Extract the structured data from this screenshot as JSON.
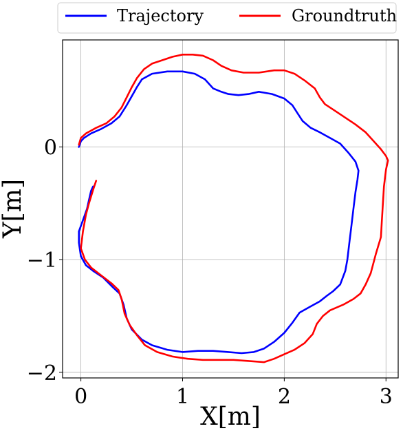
{
  "chart_data": {
    "type": "line",
    "xlabel": "X[m]",
    "ylabel": "Y[m]",
    "xlim": [
      -0.18,
      3.12
    ],
    "ylim": [
      -2.05,
      0.95
    ],
    "xticks": [
      0,
      1,
      2,
      3
    ],
    "yticks": [
      0,
      -1,
      -2
    ],
    "xtick_labels": [
      "0",
      "1",
      "2",
      "3"
    ],
    "ytick_labels": [
      "0",
      "−1",
      "−2"
    ],
    "grid": true,
    "legend_position": "top, outside above plot",
    "series": [
      {
        "name": "Trajectory",
        "color": "#0000ff",
        "points": [
          [
            -0.02,
            0.0
          ],
          [
            0.0,
            0.05
          ],
          [
            0.03,
            0.08
          ],
          [
            0.1,
            0.12
          ],
          [
            0.2,
            0.16
          ],
          [
            0.3,
            0.21
          ],
          [
            0.38,
            0.27
          ],
          [
            0.45,
            0.37
          ],
          [
            0.5,
            0.45
          ],
          [
            0.55,
            0.53
          ],
          [
            0.6,
            0.6
          ],
          [
            0.7,
            0.65
          ],
          [
            0.85,
            0.67
          ],
          [
            1.0,
            0.67
          ],
          [
            1.12,
            0.65
          ],
          [
            1.22,
            0.6
          ],
          [
            1.3,
            0.52
          ],
          [
            1.38,
            0.49
          ],
          [
            1.45,
            0.47
          ],
          [
            1.55,
            0.46
          ],
          [
            1.65,
            0.47
          ],
          [
            1.75,
            0.49
          ],
          [
            1.88,
            0.47
          ],
          [
            2.0,
            0.43
          ],
          [
            2.08,
            0.37
          ],
          [
            2.13,
            0.3
          ],
          [
            2.18,
            0.23
          ],
          [
            2.26,
            0.17
          ],
          [
            2.35,
            0.13
          ],
          [
            2.45,
            0.08
          ],
          [
            2.55,
            0.03
          ],
          [
            2.63,
            -0.05
          ],
          [
            2.7,
            -0.13
          ],
          [
            2.73,
            -0.21
          ],
          [
            2.72,
            -0.29
          ],
          [
            2.7,
            -0.4
          ],
          [
            2.68,
            -0.55
          ],
          [
            2.66,
            -0.7
          ],
          [
            2.64,
            -0.85
          ],
          [
            2.62,
            -1.0
          ],
          [
            2.6,
            -1.1
          ],
          [
            2.55,
            -1.22
          ],
          [
            2.48,
            -1.28
          ],
          [
            2.42,
            -1.32
          ],
          [
            2.35,
            -1.37
          ],
          [
            2.25,
            -1.42
          ],
          [
            2.15,
            -1.47
          ],
          [
            2.08,
            -1.56
          ],
          [
            2.0,
            -1.65
          ],
          [
            1.9,
            -1.73
          ],
          [
            1.8,
            -1.79
          ],
          [
            1.7,
            -1.82
          ],
          [
            1.58,
            -1.83
          ],
          [
            1.45,
            -1.82
          ],
          [
            1.3,
            -1.81
          ],
          [
            1.15,
            -1.81
          ],
          [
            1.0,
            -1.82
          ],
          [
            0.85,
            -1.8
          ],
          [
            0.7,
            -1.76
          ],
          [
            0.6,
            -1.71
          ],
          [
            0.5,
            -1.62
          ],
          [
            0.45,
            -1.52
          ],
          [
            0.42,
            -1.4
          ],
          [
            0.38,
            -1.3
          ],
          [
            0.32,
            -1.25
          ],
          [
            0.22,
            -1.16
          ],
          [
            0.12,
            -1.1
          ],
          [
            0.05,
            -1.05
          ],
          [
            0.0,
            -0.97
          ],
          [
            -0.02,
            -0.85
          ],
          [
            -0.02,
            -0.75
          ],
          [
            0.02,
            -0.65
          ],
          [
            0.06,
            -0.55
          ],
          [
            0.08,
            -0.47
          ],
          [
            0.1,
            -0.39
          ],
          [
            0.12,
            -0.35
          ]
        ]
      },
      {
        "name": "Groundtruth",
        "color": "#ff0000",
        "points": [
          [
            -0.02,
            0.02
          ],
          [
            0.0,
            0.08
          ],
          [
            0.05,
            0.12
          ],
          [
            0.15,
            0.17
          ],
          [
            0.25,
            0.21
          ],
          [
            0.33,
            0.27
          ],
          [
            0.4,
            0.35
          ],
          [
            0.45,
            0.44
          ],
          [
            0.5,
            0.53
          ],
          [
            0.55,
            0.61
          ],
          [
            0.62,
            0.69
          ],
          [
            0.7,
            0.74
          ],
          [
            0.8,
            0.77
          ],
          [
            0.9,
            0.8
          ],
          [
            1.0,
            0.82
          ],
          [
            1.1,
            0.82
          ],
          [
            1.2,
            0.81
          ],
          [
            1.3,
            0.77
          ],
          [
            1.38,
            0.72
          ],
          [
            1.48,
            0.68
          ],
          [
            1.6,
            0.66
          ],
          [
            1.75,
            0.66
          ],
          [
            1.9,
            0.68
          ],
          [
            2.0,
            0.68
          ],
          [
            2.1,
            0.65
          ],
          [
            2.2,
            0.59
          ],
          [
            2.3,
            0.52
          ],
          [
            2.35,
            0.44
          ],
          [
            2.4,
            0.38
          ],
          [
            2.5,
            0.32
          ],
          [
            2.6,
            0.26
          ],
          [
            2.7,
            0.2
          ],
          [
            2.8,
            0.13
          ],
          [
            2.88,
            0.05
          ],
          [
            2.95,
            -0.02
          ],
          [
            3.0,
            -0.08
          ],
          [
            3.02,
            -0.12
          ],
          [
            3.0,
            -0.2
          ],
          [
            2.98,
            -0.35
          ],
          [
            2.97,
            -0.5
          ],
          [
            2.96,
            -0.65
          ],
          [
            2.95,
            -0.8
          ],
          [
            2.9,
            -0.95
          ],
          [
            2.85,
            -1.12
          ],
          [
            2.8,
            -1.22
          ],
          [
            2.75,
            -1.3
          ],
          [
            2.68,
            -1.35
          ],
          [
            2.58,
            -1.4
          ],
          [
            2.45,
            -1.45
          ],
          [
            2.38,
            -1.5
          ],
          [
            2.32,
            -1.57
          ],
          [
            2.28,
            -1.66
          ],
          [
            2.2,
            -1.74
          ],
          [
            2.1,
            -1.8
          ],
          [
            2.0,
            -1.84
          ],
          [
            1.9,
            -1.88
          ],
          [
            1.8,
            -1.91
          ],
          [
            1.65,
            -1.9
          ],
          [
            1.5,
            -1.89
          ],
          [
            1.35,
            -1.89
          ],
          [
            1.2,
            -1.89
          ],
          [
            1.05,
            -1.88
          ],
          [
            0.9,
            -1.86
          ],
          [
            0.75,
            -1.82
          ],
          [
            0.63,
            -1.76
          ],
          [
            0.55,
            -1.67
          ],
          [
            0.48,
            -1.58
          ],
          [
            0.43,
            -1.48
          ],
          [
            0.4,
            -1.35
          ],
          [
            0.37,
            -1.27
          ],
          [
            0.3,
            -1.21
          ],
          [
            0.2,
            -1.14
          ],
          [
            0.1,
            -1.07
          ],
          [
            0.04,
            -1.0
          ],
          [
            0.0,
            -0.9
          ],
          [
            0.02,
            -0.75
          ],
          [
            0.05,
            -0.6
          ],
          [
            0.08,
            -0.5
          ],
          [
            0.12,
            -0.38
          ],
          [
            0.15,
            -0.3
          ]
        ]
      }
    ]
  }
}
